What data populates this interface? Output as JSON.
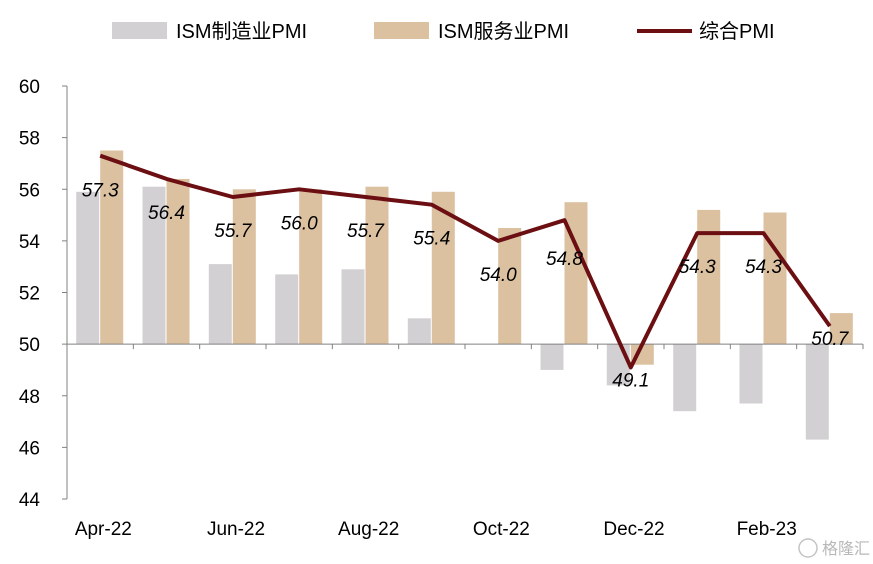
{
  "chart_data": {
    "type": "bar",
    "baseline": 50,
    "ylim": [
      44,
      60
    ],
    "yticks": [
      44,
      46,
      48,
      50,
      52,
      54,
      56,
      58,
      60
    ],
    "categories": [
      "Apr-22",
      "May-22",
      "Jun-22",
      "Jul-22",
      "Aug-22",
      "Sep-22",
      "Oct-22",
      "Nov-22",
      "Dec-22",
      "Jan-23",
      "Feb-23",
      "Mar-23"
    ],
    "xtick_labels": [
      "Apr-22",
      "Jun-22",
      "Aug-22",
      "Oct-22",
      "Dec-22",
      "Feb-23"
    ],
    "xtick_indices": [
      0,
      2,
      4,
      6,
      8,
      10
    ],
    "grid": false,
    "legend_position": "top",
    "series": [
      {
        "name": "ISM制造业PMI",
        "kind": "bar",
        "color": "#d3d0d3",
        "values": [
          55.9,
          56.1,
          53.1,
          52.7,
          52.9,
          51.0,
          50.0,
          49.0,
          48.4,
          47.4,
          47.7,
          46.3
        ]
      },
      {
        "name": "ISM服务业PMI",
        "kind": "bar",
        "color": "#dcc1a0",
        "values": [
          57.5,
          56.4,
          56.0,
          56.0,
          56.1,
          55.9,
          54.5,
          55.5,
          49.2,
          55.2,
          55.1,
          51.2
        ]
      },
      {
        "name": "综合PMI",
        "kind": "line",
        "color": "#6b0f12",
        "values": [
          57.3,
          56.4,
          55.7,
          56.0,
          55.7,
          55.4,
          54.0,
          54.8,
          49.1,
          54.3,
          54.3,
          50.7
        ],
        "labels": [
          "57.3",
          "56.4",
          "55.7",
          "56.0",
          "55.7",
          "55.4",
          "54.0",
          "54.8",
          "49.1",
          "54.3",
          "54.3",
          "50.7"
        ]
      }
    ]
  },
  "watermark": "格隆汇"
}
